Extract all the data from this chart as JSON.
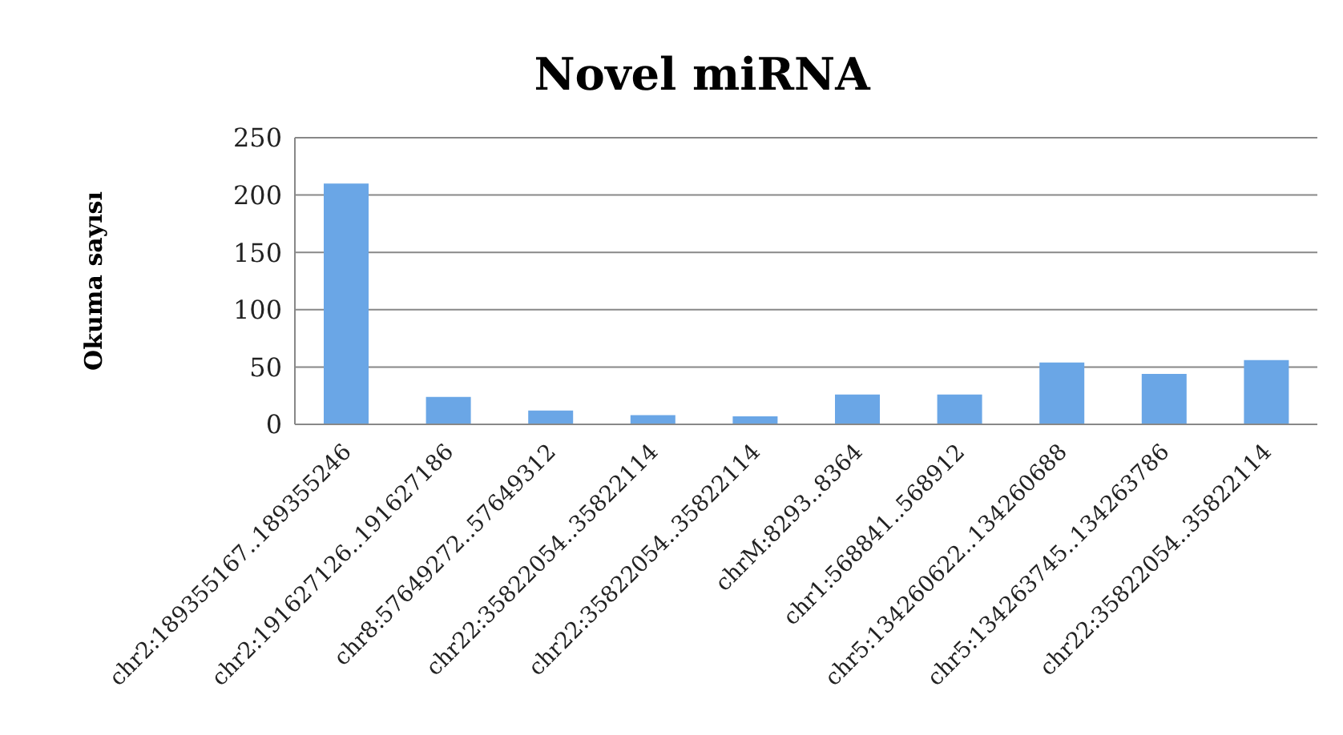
{
  "chart_data": {
    "type": "bar",
    "title": "Novel miRNA",
    "ylabel": "Okuma sayısı",
    "categories": [
      "chr2:189355167..189355246",
      "chr2:191627126..191627186",
      "chr8:57649272..57649312",
      "chr22:35822054..35822114",
      "chr22:35822054..35822114",
      "chrM:8293..8364",
      "chr1:568841..568912",
      "chr5:134260622..134260688",
      "chr5:134263745..134263786",
      "chr22:35822054..35822114"
    ],
    "values": [
      210,
      24,
      12,
      8,
      7,
      26,
      26,
      54,
      44,
      56
    ],
    "color": "#6aa6e6",
    "ylim": [
      0,
      250
    ],
    "yticks": [
      0,
      50,
      100,
      150,
      200,
      250
    ],
    "grid": "y",
    "legend": false
  }
}
